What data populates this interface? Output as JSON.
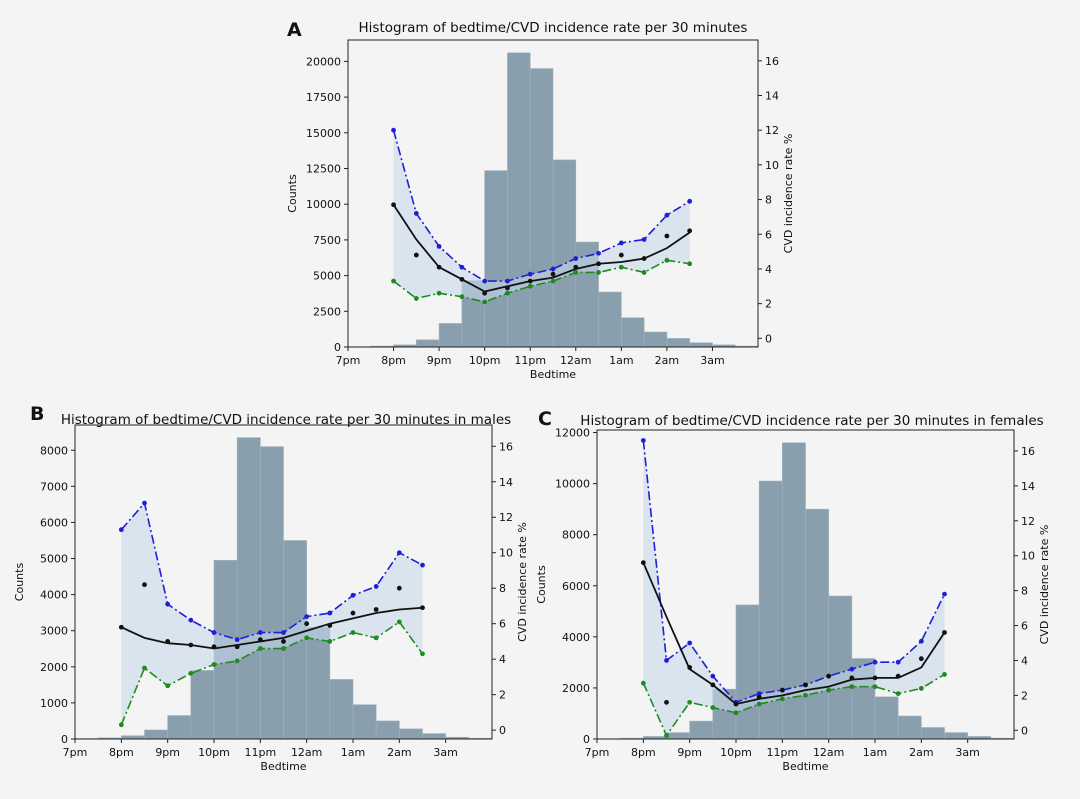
{
  "colors": {
    "bars": "#8a9fae",
    "upper_ci": "#1f1fd8",
    "lower_ci": "#1f8a1f",
    "fit": "#111111",
    "points": "#111111",
    "band_fill": "#c6d9ea",
    "background": "#f4f4f4"
  },
  "chart_data": [
    {
      "type": "bar",
      "panel": "A",
      "title": "Histogram of bedtime/CVD incidence rate per 30 minutes",
      "xlabel": "Bedtime",
      "ylabel": "Counts",
      "ylabel_right": "CVD incidence rate %",
      "x_tick_labels": [
        "7pm",
        "8pm",
        "9pm",
        "10pm",
        "11pm",
        "12am",
        "1am",
        "2am",
        "3am"
      ],
      "x_ticks": [
        0,
        1,
        2,
        3,
        4,
        5,
        6,
        7,
        8
      ],
      "xlim": [
        0,
        9
      ],
      "ylim": [
        0,
        21500
      ],
      "y_ticks": [
        0,
        2500,
        5000,
        7500,
        10000,
        12500,
        15000,
        17500,
        20000
      ],
      "y2lim": [
        -0.5,
        17.2
      ],
      "y2_ticks": [
        0,
        2,
        4,
        6,
        8,
        10,
        12,
        14,
        16
      ],
      "grid": false,
      "histogram": {
        "bin_starts": [
          0,
          0.5,
          1,
          1.5,
          2,
          2.5,
          3,
          3.5,
          4,
          4.5,
          5,
          5.5,
          6,
          6.5,
          7,
          7.5,
          8,
          8.5
        ],
        "bin_width": 0.5,
        "counts": [
          20,
          60,
          150,
          500,
          1650,
          4650,
          12350,
          20600,
          19500,
          13100,
          7350,
          3850,
          2050,
          1050,
          600,
          300,
          150,
          60
        ]
      },
      "line_x": [
        1,
        1.5,
        2,
        2.5,
        3,
        3.5,
        4,
        4.5,
        5,
        5.5,
        6,
        6.5,
        7,
        7.5
      ],
      "series": [
        {
          "name": "upper",
          "style": "dash-dot",
          "values": [
            12.0,
            7.2,
            5.3,
            4.1,
            3.3,
            3.3,
            3.7,
            4.0,
            4.6,
            4.9,
            5.5,
            5.7,
            7.1,
            7.9
          ]
        },
        {
          "name": "lower",
          "style": "dash-dot",
          "values": [
            3.3,
            2.3,
            2.6,
            2.4,
            2.1,
            2.6,
            3.0,
            3.3,
            3.8,
            3.8,
            4.1,
            3.8,
            4.5,
            4.3
          ]
        },
        {
          "name": "fit",
          "style": "solid",
          "values": [
            7.7,
            5.7,
            4.1,
            3.4,
            2.7,
            3.0,
            3.3,
            3.5,
            4.0,
            4.3,
            4.4,
            4.6,
            5.2,
            6.1
          ]
        },
        {
          "name": "points",
          "style": "dots",
          "values": [
            7.7,
            4.8,
            4.1,
            3.4,
            2.6,
            2.9,
            3.3,
            3.7,
            4.1,
            4.3,
            4.8,
            4.6,
            5.9,
            6.2
          ]
        }
      ]
    },
    {
      "type": "bar",
      "panel": "B",
      "title": "Histogram of bedtime/CVD incidence rate per 30 minutes in males",
      "xlabel": "Bedtime",
      "ylabel": "Counts",
      "ylabel_right": "CVD incidence rate %",
      "x_tick_labels": [
        "7pm",
        "8pm",
        "9pm",
        "10pm",
        "11pm",
        "12am",
        "1am",
        "2am",
        "3am"
      ],
      "x_ticks": [
        0,
        1,
        2,
        3,
        4,
        5,
        6,
        7,
        8
      ],
      "xlim": [
        0,
        9
      ],
      "ylim": [
        0,
        8700
      ],
      "y_ticks": [
        0,
        1000,
        2000,
        3000,
        4000,
        5000,
        6000,
        7000,
        8000
      ],
      "y2lim": [
        -0.5,
        17.2
      ],
      "y2_ticks": [
        0,
        2,
        4,
        6,
        8,
        10,
        12,
        14,
        16
      ],
      "grid": false,
      "histogram": {
        "bin_starts": [
          0,
          0.5,
          1,
          1.5,
          2,
          2.5,
          3,
          3.5,
          4,
          4.5,
          5,
          5.5,
          6,
          6.5,
          7,
          7.5,
          8,
          8.5
        ],
        "bin_width": 0.5,
        "counts": [
          10,
          30,
          90,
          250,
          650,
          1900,
          4950,
          8350,
          8100,
          5500,
          3100,
          1650,
          950,
          500,
          280,
          150,
          50,
          20
        ]
      },
      "line_x": [
        1,
        1.5,
        2,
        2.5,
        3,
        3.5,
        4,
        4.5,
        5,
        5.5,
        6,
        6.5,
        7,
        7.5
      ],
      "series": [
        {
          "name": "upper",
          "style": "dash-dot",
          "values": [
            11.3,
            12.8,
            7.1,
            6.2,
            5.5,
            5.1,
            5.5,
            5.5,
            6.4,
            6.6,
            7.6,
            8.1,
            10.0,
            9.3
          ]
        },
        {
          "name": "lower",
          "style": "dash-dot",
          "values": [
            0.3,
            3.5,
            2.5,
            3.2,
            3.7,
            3.9,
            4.6,
            4.6,
            5.2,
            5.0,
            5.5,
            5.2,
            6.1,
            4.3
          ]
        },
        {
          "name": "fit",
          "style": "solid",
          "values": [
            5.8,
            5.2,
            4.9,
            4.8,
            4.6,
            4.8,
            5.0,
            5.2,
            5.6,
            6.0,
            6.3,
            6.6,
            6.8,
            6.9
          ]
        },
        {
          "name": "points",
          "style": "dots",
          "values": [
            5.8,
            8.2,
            5.0,
            4.8,
            4.7,
            4.7,
            5.1,
            5.0,
            6.0,
            5.9,
            6.6,
            6.8,
            8.0,
            6.9
          ]
        }
      ]
    },
    {
      "type": "bar",
      "panel": "C",
      "title": "Histogram of bedtime/CVD incidence rate per 30 minutes in females",
      "xlabel": "Bedtime",
      "ylabel": "Counts",
      "ylabel_right": "CVD incidence rate %",
      "x_tick_labels": [
        "7pm",
        "8pm",
        "9pm",
        "10pm",
        "11pm",
        "12am",
        "1am",
        "2am",
        "3am"
      ],
      "x_ticks": [
        0,
        1,
        2,
        3,
        4,
        5,
        6,
        7,
        8
      ],
      "xlim": [
        0,
        9
      ],
      "ylim": [
        0,
        12100
      ],
      "y_ticks": [
        0,
        2000,
        4000,
        6000,
        8000,
        10000,
        12000
      ],
      "y2lim": [
        -0.5,
        17.2
      ],
      "y2_ticks": [
        0,
        2,
        4,
        6,
        8,
        10,
        12,
        14,
        16
      ],
      "grid": false,
      "histogram": {
        "bin_starts": [
          0,
          0.5,
          1,
          1.5,
          2,
          2.5,
          3,
          3.5,
          4,
          4.5,
          5,
          5.5,
          6,
          6.5,
          7,
          7.5,
          8,
          8.5
        ],
        "bin_width": 0.5,
        "counts": [
          10,
          30,
          100,
          250,
          700,
          1950,
          5250,
          10100,
          11600,
          9000,
          5600,
          3150,
          1650,
          900,
          450,
          250,
          100,
          30
        ]
      },
      "line_x": [
        1,
        1.5,
        2,
        2.5,
        3,
        3.5,
        4,
        4.5,
        5,
        5.5,
        6,
        6.5,
        7,
        7.5
      ],
      "series": [
        {
          "name": "upper",
          "style": "dash-dot",
          "values": [
            16.6,
            4.0,
            5.0,
            3.1,
            1.6,
            2.1,
            2.3,
            2.6,
            3.1,
            3.5,
            3.9,
            3.9,
            5.1,
            7.8
          ]
        },
        {
          "name": "lower",
          "style": "dash-dot",
          "values": [
            2.7,
            -0.3,
            1.6,
            1.3,
            1.0,
            1.5,
            1.8,
            2.0,
            2.3,
            2.5,
            2.5,
            2.1,
            2.4,
            3.2
          ]
        },
        {
          "name": "fit",
          "style": "solid",
          "values": [
            9.6,
            6.5,
            3.5,
            2.6,
            1.5,
            1.8,
            2.0,
            2.3,
            2.5,
            2.9,
            3.0,
            3.0,
            3.6,
            5.6
          ]
        },
        {
          "name": "points",
          "style": "dots",
          "values": [
            9.6,
            1.6,
            3.6,
            2.6,
            1.5,
            1.9,
            2.3,
            2.6,
            3.1,
            3.0,
            3.0,
            3.1,
            4.1,
            5.6
          ]
        }
      ]
    }
  ]
}
